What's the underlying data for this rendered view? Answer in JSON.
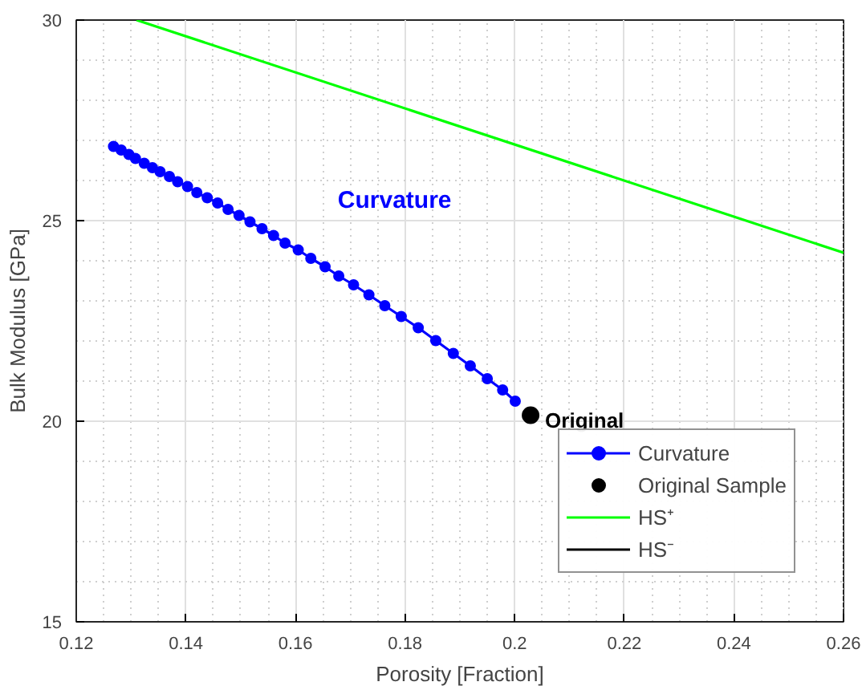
{
  "chart_data": {
    "type": "line",
    "xlabel": "Porosity [Fraction]",
    "ylabel": "Bulk Modulus [GPa]",
    "xlim": [
      0.12,
      0.26
    ],
    "ylim": [
      15,
      30
    ],
    "xticks": [
      0.12,
      0.14,
      0.16,
      0.18,
      {
        "value": 0.2,
        "label": "0.2"
      },
      0.22,
      0.24,
      0.26
    ],
    "yticks": [
      15,
      20,
      25,
      30
    ],
    "grid": true,
    "legend": "bottom right",
    "series": [
      {
        "name": "Curvature",
        "marker": "circle",
        "color": "#0000ff",
        "x": [
          0.1268,
          0.1282,
          0.1296,
          0.1308,
          0.1324,
          0.1339,
          0.1353,
          0.137,
          0.1385,
          0.1403,
          0.142,
          0.1439,
          0.1458,
          0.1477,
          0.1497,
          0.1517,
          0.1539,
          0.156,
          0.1581,
          0.1605,
          0.1628,
          0.1654,
          0.1679,
          0.1706,
          0.1734,
          0.1763,
          0.1793,
          0.1824,
          0.1856,
          0.1888,
          0.1919,
          0.195,
          0.1978,
          0.2001
        ],
        "values": [
          26.85,
          26.76,
          26.65,
          26.55,
          26.43,
          26.32,
          26.22,
          26.1,
          25.97,
          25.85,
          25.7,
          25.57,
          25.44,
          25.28,
          25.13,
          24.97,
          24.8,
          24.63,
          24.44,
          24.27,
          24.06,
          23.85,
          23.62,
          23.4,
          23.15,
          22.88,
          22.61,
          22.33,
          22.01,
          21.69,
          21.38,
          21.06,
          20.78,
          20.5
        ]
      },
      {
        "name": "Original Sample",
        "type": "scatter",
        "marker": "circle",
        "color": "#000000",
        "x": [
          0.2029
        ],
        "values": [
          20.15
        ]
      },
      {
        "name": "HS⁺",
        "marker": "none",
        "color": "#00ff00",
        "x": [
          0.131,
          0.26
        ],
        "values": [
          30,
          24.2
        ]
      },
      {
        "name": "HS⁻",
        "marker": "none",
        "color": "#000000"
      }
    ],
    "annotations": [
      "Curvature",
      {
        "text": "Original",
        "x": 0.2029,
        "y": 20.15
      }
    ]
  }
}
